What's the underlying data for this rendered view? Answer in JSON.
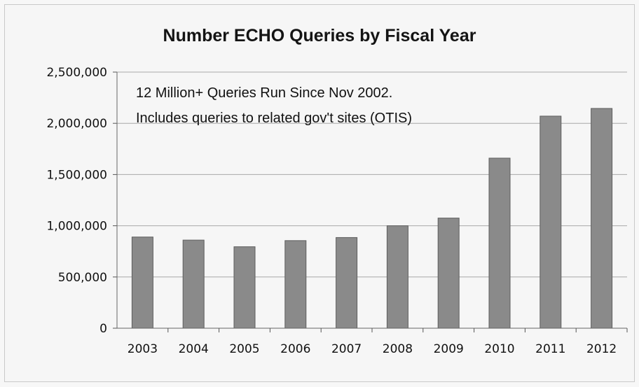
{
  "chart_data": {
    "type": "bar",
    "title": "Number ECHO Queries by Fiscal Year",
    "xlabel": "",
    "ylabel": "",
    "categories": [
      "2003",
      "2004",
      "2005",
      "2006",
      "2007",
      "2008",
      "2009",
      "2010",
      "2011",
      "2012"
    ],
    "values": [
      890000,
      860000,
      795000,
      855000,
      885000,
      1000000,
      1075000,
      1660000,
      2070000,
      2145000
    ],
    "ylim": [
      0,
      2500000
    ],
    "yticks": [
      0,
      500000,
      1000000,
      1500000,
      2000000,
      2500000
    ],
    "ytick_labels": [
      "0",
      "500,000",
      "1,000,000",
      "1,500,000",
      "2,000,000",
      "2,500,000"
    ],
    "grid": true,
    "legend": "none",
    "annotations": [
      "12 Million+ Queries Run Since Nov 2002.",
      "Includes queries to related gov't sites (OTIS)"
    ],
    "colors": {
      "bar": "#8a8a8a",
      "bar_edge": "#5e5e5e",
      "grid": "#a8a8a8",
      "background": "#f6f6f6"
    }
  }
}
